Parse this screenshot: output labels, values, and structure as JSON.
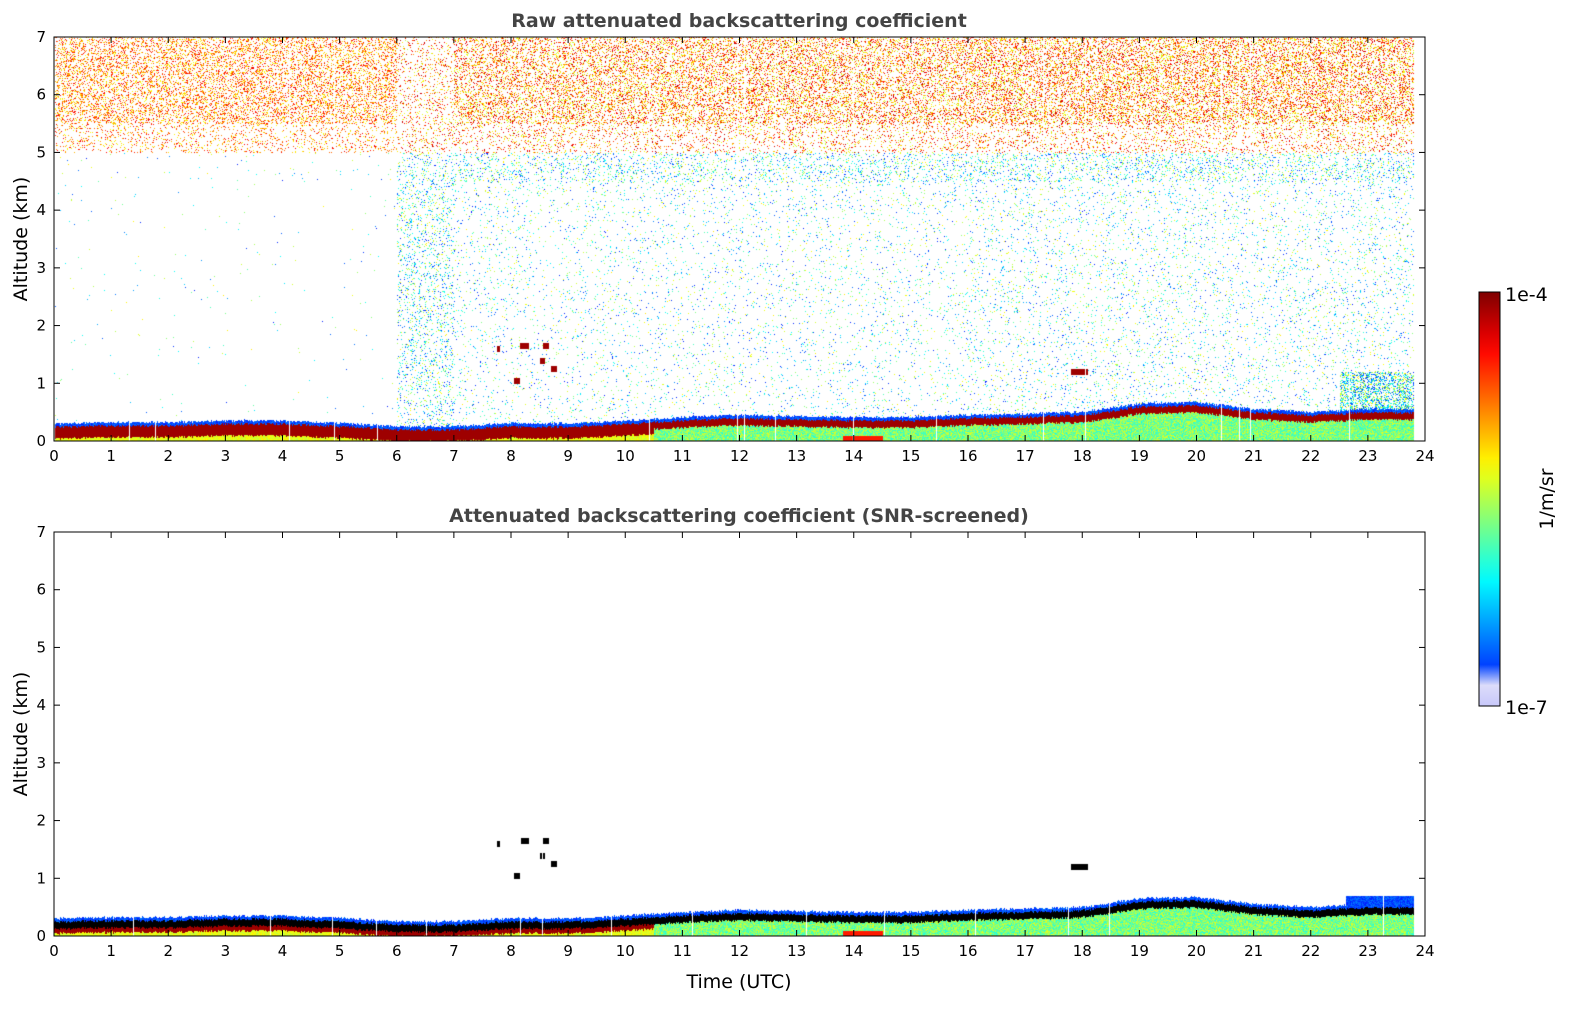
{
  "chart_data": {
    "type": "heatmap",
    "panels": [
      {
        "title": "Raw attenuated backscattering coefficient",
        "ylabel": "Altitude (km)",
        "xlabel": "",
        "screened": false
      },
      {
        "title": "Attenuated backscattering coefficient (SNR-screened)",
        "ylabel": "Altitude (km)",
        "xlabel": "Time (UTC)",
        "screened": true
      }
    ],
    "xlim": [
      0,
      24
    ],
    "ylim": [
      0,
      7
    ],
    "xticks": [
      "0",
      "1",
      "2",
      "3",
      "4",
      "5",
      "6",
      "7",
      "8",
      "9",
      "10",
      "11",
      "12",
      "13",
      "14",
      "15",
      "16",
      "17",
      "18",
      "19",
      "20",
      "21",
      "22",
      "23",
      "24"
    ],
    "yticks": [
      "0",
      "1",
      "2",
      "3",
      "4",
      "5",
      "6",
      "7"
    ],
    "data_end_hour": 23.8,
    "boundary_layer_top_km": {
      "hours": [
        0,
        1,
        2,
        3,
        4,
        5,
        6,
        7,
        8,
        9,
        10,
        11,
        12,
        13,
        14,
        15,
        16,
        17,
        18,
        19,
        20,
        21,
        22,
        23,
        23.8
      ],
      "values": [
        0.25,
        0.27,
        0.27,
        0.3,
        0.3,
        0.26,
        0.2,
        0.2,
        0.26,
        0.25,
        0.3,
        0.36,
        0.4,
        0.38,
        0.36,
        0.36,
        0.4,
        0.42,
        0.45,
        0.6,
        0.62,
        0.5,
        0.45,
        0.5,
        0.5
      ]
    },
    "cloud_features": [
      {
        "t0": 7.75,
        "t1": 7.8,
        "alt": 1.6
      },
      {
        "t0": 8.05,
        "t1": 8.15,
        "alt": 1.05
      },
      {
        "t0": 8.15,
        "t1": 8.3,
        "alt": 1.65
      },
      {
        "t0": 8.5,
        "t1": 8.58,
        "alt": 1.4
      },
      {
        "t0": 8.55,
        "t1": 8.65,
        "alt": 1.65
      },
      {
        "t0": 8.7,
        "t1": 8.8,
        "alt": 1.25
      },
      {
        "t0": 17.8,
        "t1": 18.1,
        "alt": 1.2
      }
    ],
    "colorbar": {
      "label": "1/m/sr",
      "min_label": "1e-7",
      "max_label": "1e-4",
      "vmin": 1e-07,
      "vmax": 0.0001,
      "scale": "log",
      "colormap": "jet"
    }
  }
}
